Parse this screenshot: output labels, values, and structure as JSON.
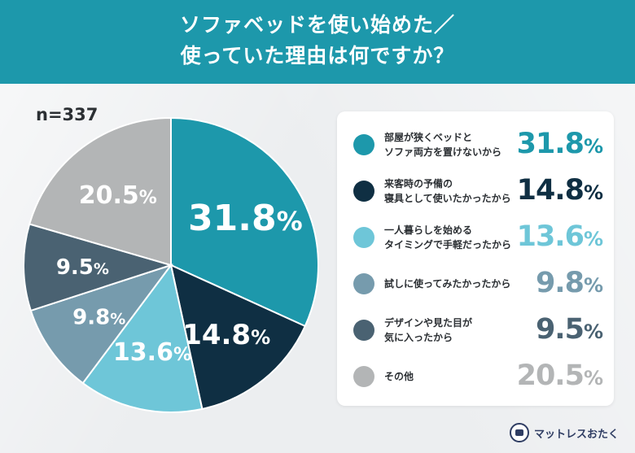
{
  "header": {
    "title_line1": "ソファベッドを使い始めた／",
    "title_line2": "使っていた理由は何ですか？"
  },
  "sample_size": "n=337",
  "chart_data": {
    "type": "pie",
    "title": "ソファベッドを使い始めた／使っていた理由は何ですか？",
    "n": 337,
    "unit": "%",
    "slices": [
      {
        "label": "部屋が狭くベッドとソファ両方を置けないから",
        "label_lines": [
          "部屋が狭くベッドと",
          "ソファ両方を置けないから"
        ],
        "value": 31.8,
        "color": "#1d98ab",
        "label_color": "#ffffff"
      },
      {
        "label": "来客時の予備の寝具として使いたかったから",
        "label_lines": [
          "来客時の予備の",
          "寝具として使いたかったから"
        ],
        "value": 14.8,
        "color": "#0f2f43",
        "label_color": "#ffffff"
      },
      {
        "label": "一人暮らしを始めるタイミングで手軽だったから",
        "label_lines": [
          "一人暮らしを始める",
          "タイミングで手軽だったから"
        ],
        "value": 13.6,
        "color": "#6ec6d8",
        "label_color": "#ffffff"
      },
      {
        "label": "試しに使ってみたかったから",
        "label_lines": [
          "試しに使ってみたかったから"
        ],
        "value": 9.8,
        "color": "#769bad",
        "label_color": "#ffffff"
      },
      {
        "label": "デザインや見た目が気に入ったから",
        "label_lines": [
          "デザインや見た目が",
          "気に入ったから"
        ],
        "value": 9.5,
        "color": "#4a6272",
        "label_color": "#ffffff"
      },
      {
        "label": "その他",
        "label_lines": [
          "その他"
        ],
        "value": 20.5,
        "color": "#b3b5b6",
        "label_color": "#ffffff"
      }
    ]
  },
  "logo": {
    "name": "マットレスおたく"
  }
}
